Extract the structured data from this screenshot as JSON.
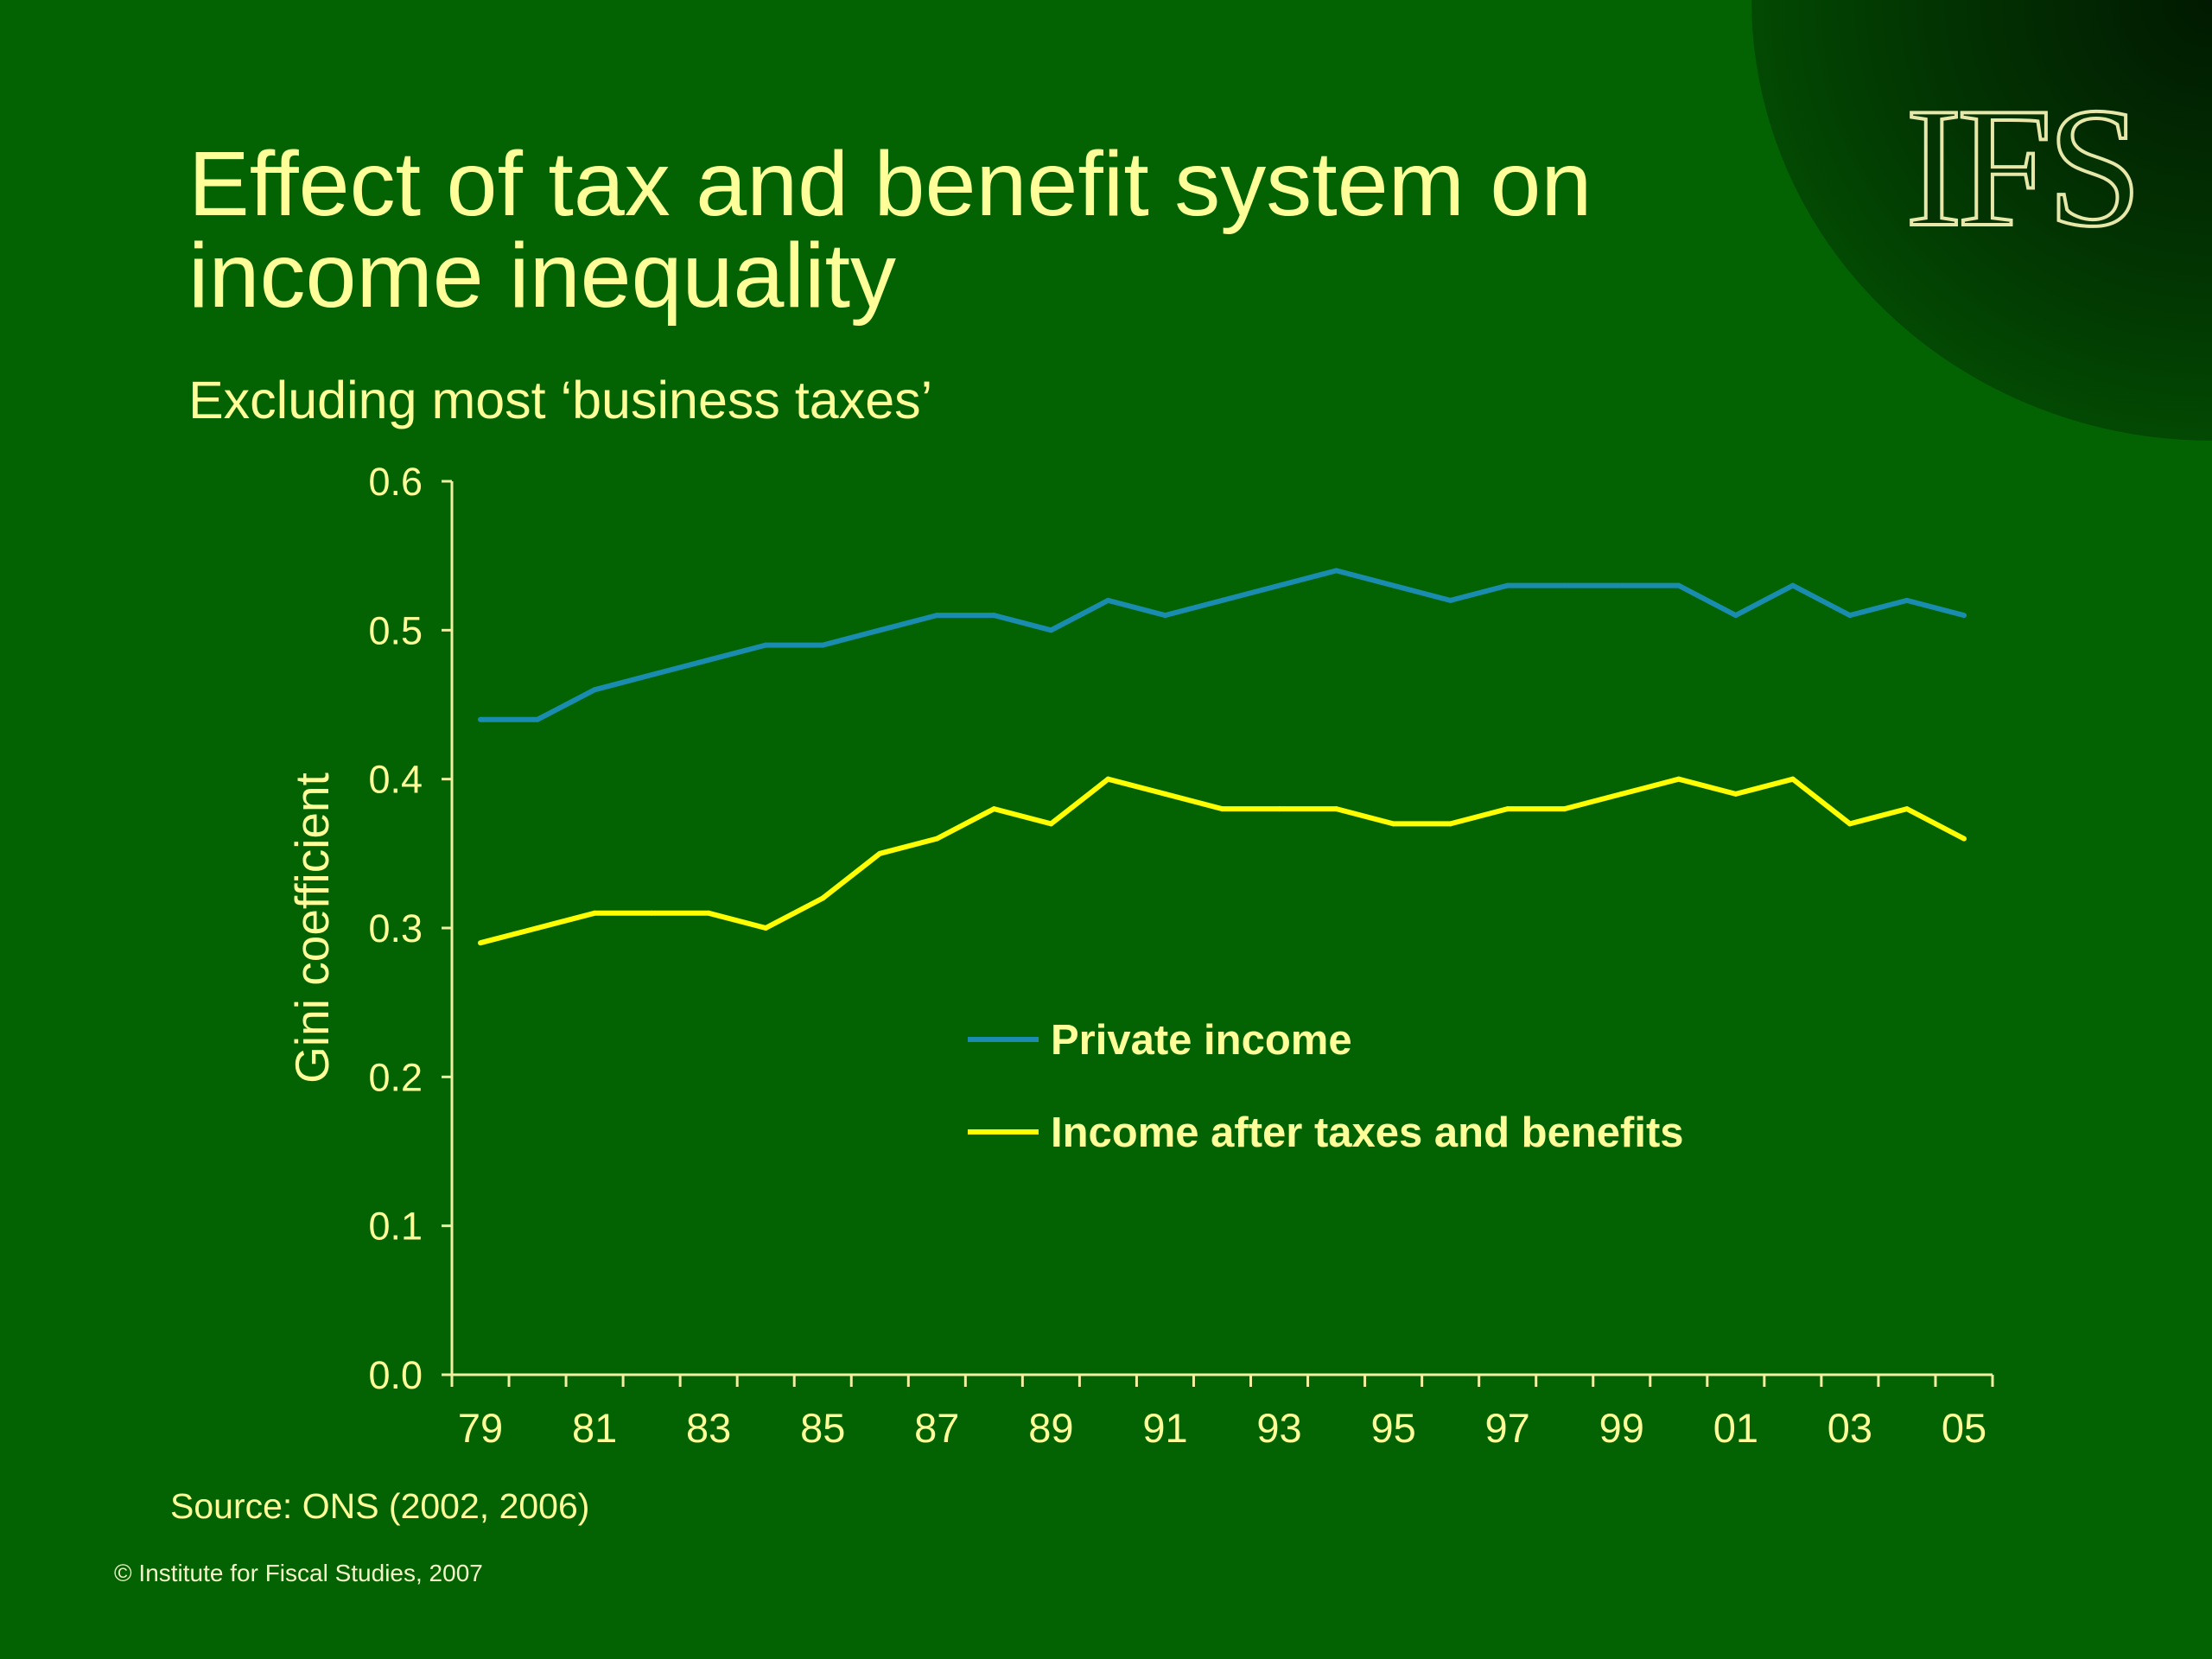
{
  "logo": {
    "text": "IFS"
  },
  "slide": {
    "title_line1": "Effect of tax and benefit system on",
    "title_line2": "income inequality",
    "subtitle": "Excluding most ‘business taxes’",
    "source": "Source: ONS (2002, 2006)",
    "copyright": "© Institute for Fiscal Studies, 2007"
  },
  "chart_data": {
    "type": "line",
    "title": "",
    "xlabel": "",
    "ylabel": "Gini coefficient",
    "x": [
      "79",
      "80",
      "81",
      "82",
      "83",
      "84",
      "85",
      "86",
      "87",
      "88",
      "89",
      "90",
      "91",
      "92",
      "93",
      "94",
      "95",
      "96",
      "97",
      "98",
      "99",
      "00",
      "01",
      "02",
      "03",
      "04",
      "05"
    ],
    "x_tick_labels": [
      "79",
      "81",
      "83",
      "85",
      "87",
      "89",
      "91",
      "93",
      "95",
      "97",
      "99",
      "01",
      "03",
      "05"
    ],
    "ylim": [
      0,
      0.6
    ],
    "y_ticks": [
      "0.0",
      "0.1",
      "0.2",
      "0.3",
      "0.4",
      "0.5",
      "0.6"
    ],
    "grid": false,
    "legend_position": "center-right",
    "series": [
      {
        "name": "Private income",
        "color": "#1a8cb0",
        "values": [
          0.44,
          0.44,
          0.46,
          0.47,
          0.48,
          0.49,
          0.49,
          0.5,
          0.51,
          0.51,
          0.5,
          0.52,
          0.51,
          0.52,
          0.53,
          0.54,
          0.53,
          0.52,
          0.53,
          0.53,
          0.53,
          0.53,
          0.51,
          0.53,
          0.51,
          0.52,
          0.51
        ]
      },
      {
        "name": "Income after taxes and benefits",
        "color": "#ffff00",
        "values": [
          0.29,
          0.3,
          0.31,
          0.31,
          0.31,
          0.3,
          0.32,
          0.35,
          0.36,
          0.38,
          0.37,
          0.4,
          0.39,
          0.38,
          0.38,
          0.38,
          0.37,
          0.37,
          0.38,
          0.38,
          0.39,
          0.4,
          0.39,
          0.4,
          0.37,
          0.38,
          0.36
        ]
      }
    ]
  },
  "colors": {
    "background": "#036303",
    "text": "#ffff99",
    "axis": "#f0f0a0"
  }
}
